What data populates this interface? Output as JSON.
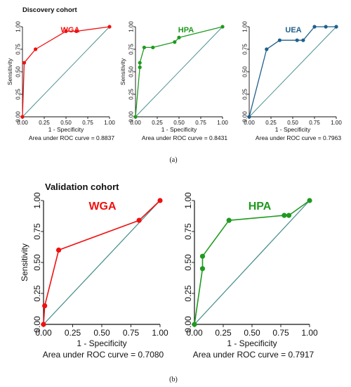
{
  "cohorts": {
    "a": {
      "title": "Discovery cohort",
      "caption": "(a)"
    },
    "b": {
      "title": "Validation cohort",
      "caption": "(b)"
    }
  },
  "chart_data": [
    {
      "type": "line",
      "panel": "discovery-wga",
      "name": "WGA",
      "color": "#f01010",
      "xlabel": "1 - Specificity",
      "ylabel": "Sensitivity",
      "area_label": "Area under ROC curve = 0.8837",
      "xlim": [
        0,
        1
      ],
      "ylim": [
        0,
        1
      ],
      "xticks": [
        "0.00",
        "0.25",
        "0.50",
        "0.75",
        "1.00"
      ],
      "yticks": [
        "0.00",
        "0.25",
        "0.50",
        "0.75",
        "1.00"
      ],
      "x": [
        0,
        0,
        0.02,
        0.15,
        0.5,
        0.62,
        1.0
      ],
      "y": [
        0,
        0.0,
        0.6,
        0.75,
        0.95,
        0.95,
        1.0
      ],
      "markers": [
        [
          0,
          0
        ],
        [
          0.02,
          0.6
        ],
        [
          0.15,
          0.75
        ],
        [
          0.5,
          0.95
        ],
        [
          0.62,
          0.95
        ],
        [
          1.0,
          1.0
        ]
      ]
    },
    {
      "type": "line",
      "panel": "discovery-hpa",
      "name": "HPA",
      "color": "#1f9a1f",
      "xlabel": "1 - Specificity",
      "ylabel": "Sensitivity",
      "area_label": "Area under ROC curve = 0.8431",
      "xlim": [
        0,
        1
      ],
      "ylim": [
        0,
        1
      ],
      "xticks": [
        "0.00",
        "0.25",
        "0.50",
        "0.75",
        "1.00"
      ],
      "yticks": [
        "0.00",
        "0.25",
        "0.50",
        "0.75",
        "1.00"
      ],
      "x": [
        0,
        0.05,
        0.05,
        0.1,
        0.2,
        0.45,
        0.5,
        1.0
      ],
      "y": [
        0,
        0.55,
        0.6,
        0.77,
        0.77,
        0.83,
        0.88,
        1.0
      ],
      "markers": [
        [
          0,
          0
        ],
        [
          0.05,
          0.55
        ],
        [
          0.05,
          0.6
        ],
        [
          0.1,
          0.77
        ],
        [
          0.2,
          0.77
        ],
        [
          0.45,
          0.83
        ],
        [
          0.5,
          0.88
        ],
        [
          1.0,
          1.0
        ]
      ]
    },
    {
      "type": "line",
      "panel": "discovery-uea",
      "name": "UEA",
      "color": "#1f5f8b",
      "xlabel": "1 - Specificity",
      "ylabel": "",
      "area_label": "Area under ROC curve = 0.7963",
      "xlim": [
        0,
        1
      ],
      "ylim": [
        0,
        1
      ],
      "xticks": [
        "0.00",
        "0.25",
        "0.50",
        "0.75",
        "1.00"
      ],
      "yticks": [
        "0.00",
        "0.25",
        "0.50",
        "0.75",
        "1.00"
      ],
      "x": [
        0,
        0.2,
        0.35,
        0.55,
        0.62,
        0.75,
        0.88,
        1.0
      ],
      "y": [
        0,
        0.75,
        0.85,
        0.85,
        0.85,
        1.0,
        1.0,
        1.0
      ],
      "markers": [
        [
          0,
          0
        ],
        [
          0.2,
          0.75
        ],
        [
          0.35,
          0.85
        ],
        [
          0.55,
          0.85
        ],
        [
          0.62,
          0.85
        ],
        [
          0.75,
          1.0
        ],
        [
          0.88,
          1.0
        ],
        [
          1.0,
          1.0
        ]
      ]
    },
    {
      "type": "line",
      "panel": "validation-wga",
      "name": "WGA",
      "color": "#f01010",
      "xlabel": "1 - Specificity",
      "ylabel": "Sensitivity",
      "area_label": "Area under ROC curve = 0.7080",
      "xlim": [
        0,
        1
      ],
      "ylim": [
        0,
        1
      ],
      "xticks": [
        "0.00",
        "0.25",
        "0.50",
        "0.75",
        "1.00"
      ],
      "yticks": [
        "0.00",
        "0.25",
        "0.50",
        "0.75",
        "1.00"
      ],
      "x": [
        0,
        0.01,
        0.13,
        0.82,
        1.0
      ],
      "y": [
        0,
        0.15,
        0.6,
        0.84,
        1.0
      ],
      "markers": [
        [
          0,
          0
        ],
        [
          0.01,
          0.15
        ],
        [
          0.13,
          0.6
        ],
        [
          0.82,
          0.84
        ],
        [
          1.0,
          1.0
        ]
      ]
    },
    {
      "type": "line",
      "panel": "validation-hpa",
      "name": "HPA",
      "color": "#1f9a1f",
      "xlabel": "1 - Specificity",
      "ylabel": "",
      "area_label": "Area under ROC curve = 0.7917",
      "xlim": [
        0,
        1
      ],
      "ylim": [
        0,
        1
      ],
      "xticks": [
        "0.00",
        "0.25",
        "0.50",
        "0.75",
        "1.00"
      ],
      "yticks": [
        "0.00",
        "0.25",
        "0.50",
        "0.75",
        "1.00"
      ],
      "x": [
        0,
        0.07,
        0.07,
        0.3,
        0.78,
        0.82,
        1.0
      ],
      "y": [
        0,
        0.45,
        0.55,
        0.84,
        0.88,
        0.88,
        1.0
      ],
      "markers": [
        [
          0,
          0
        ],
        [
          0.07,
          0.45
        ],
        [
          0.07,
          0.55
        ],
        [
          0.3,
          0.84
        ],
        [
          0.78,
          0.88
        ],
        [
          0.82,
          0.88
        ],
        [
          1.0,
          1.0
        ]
      ]
    }
  ]
}
